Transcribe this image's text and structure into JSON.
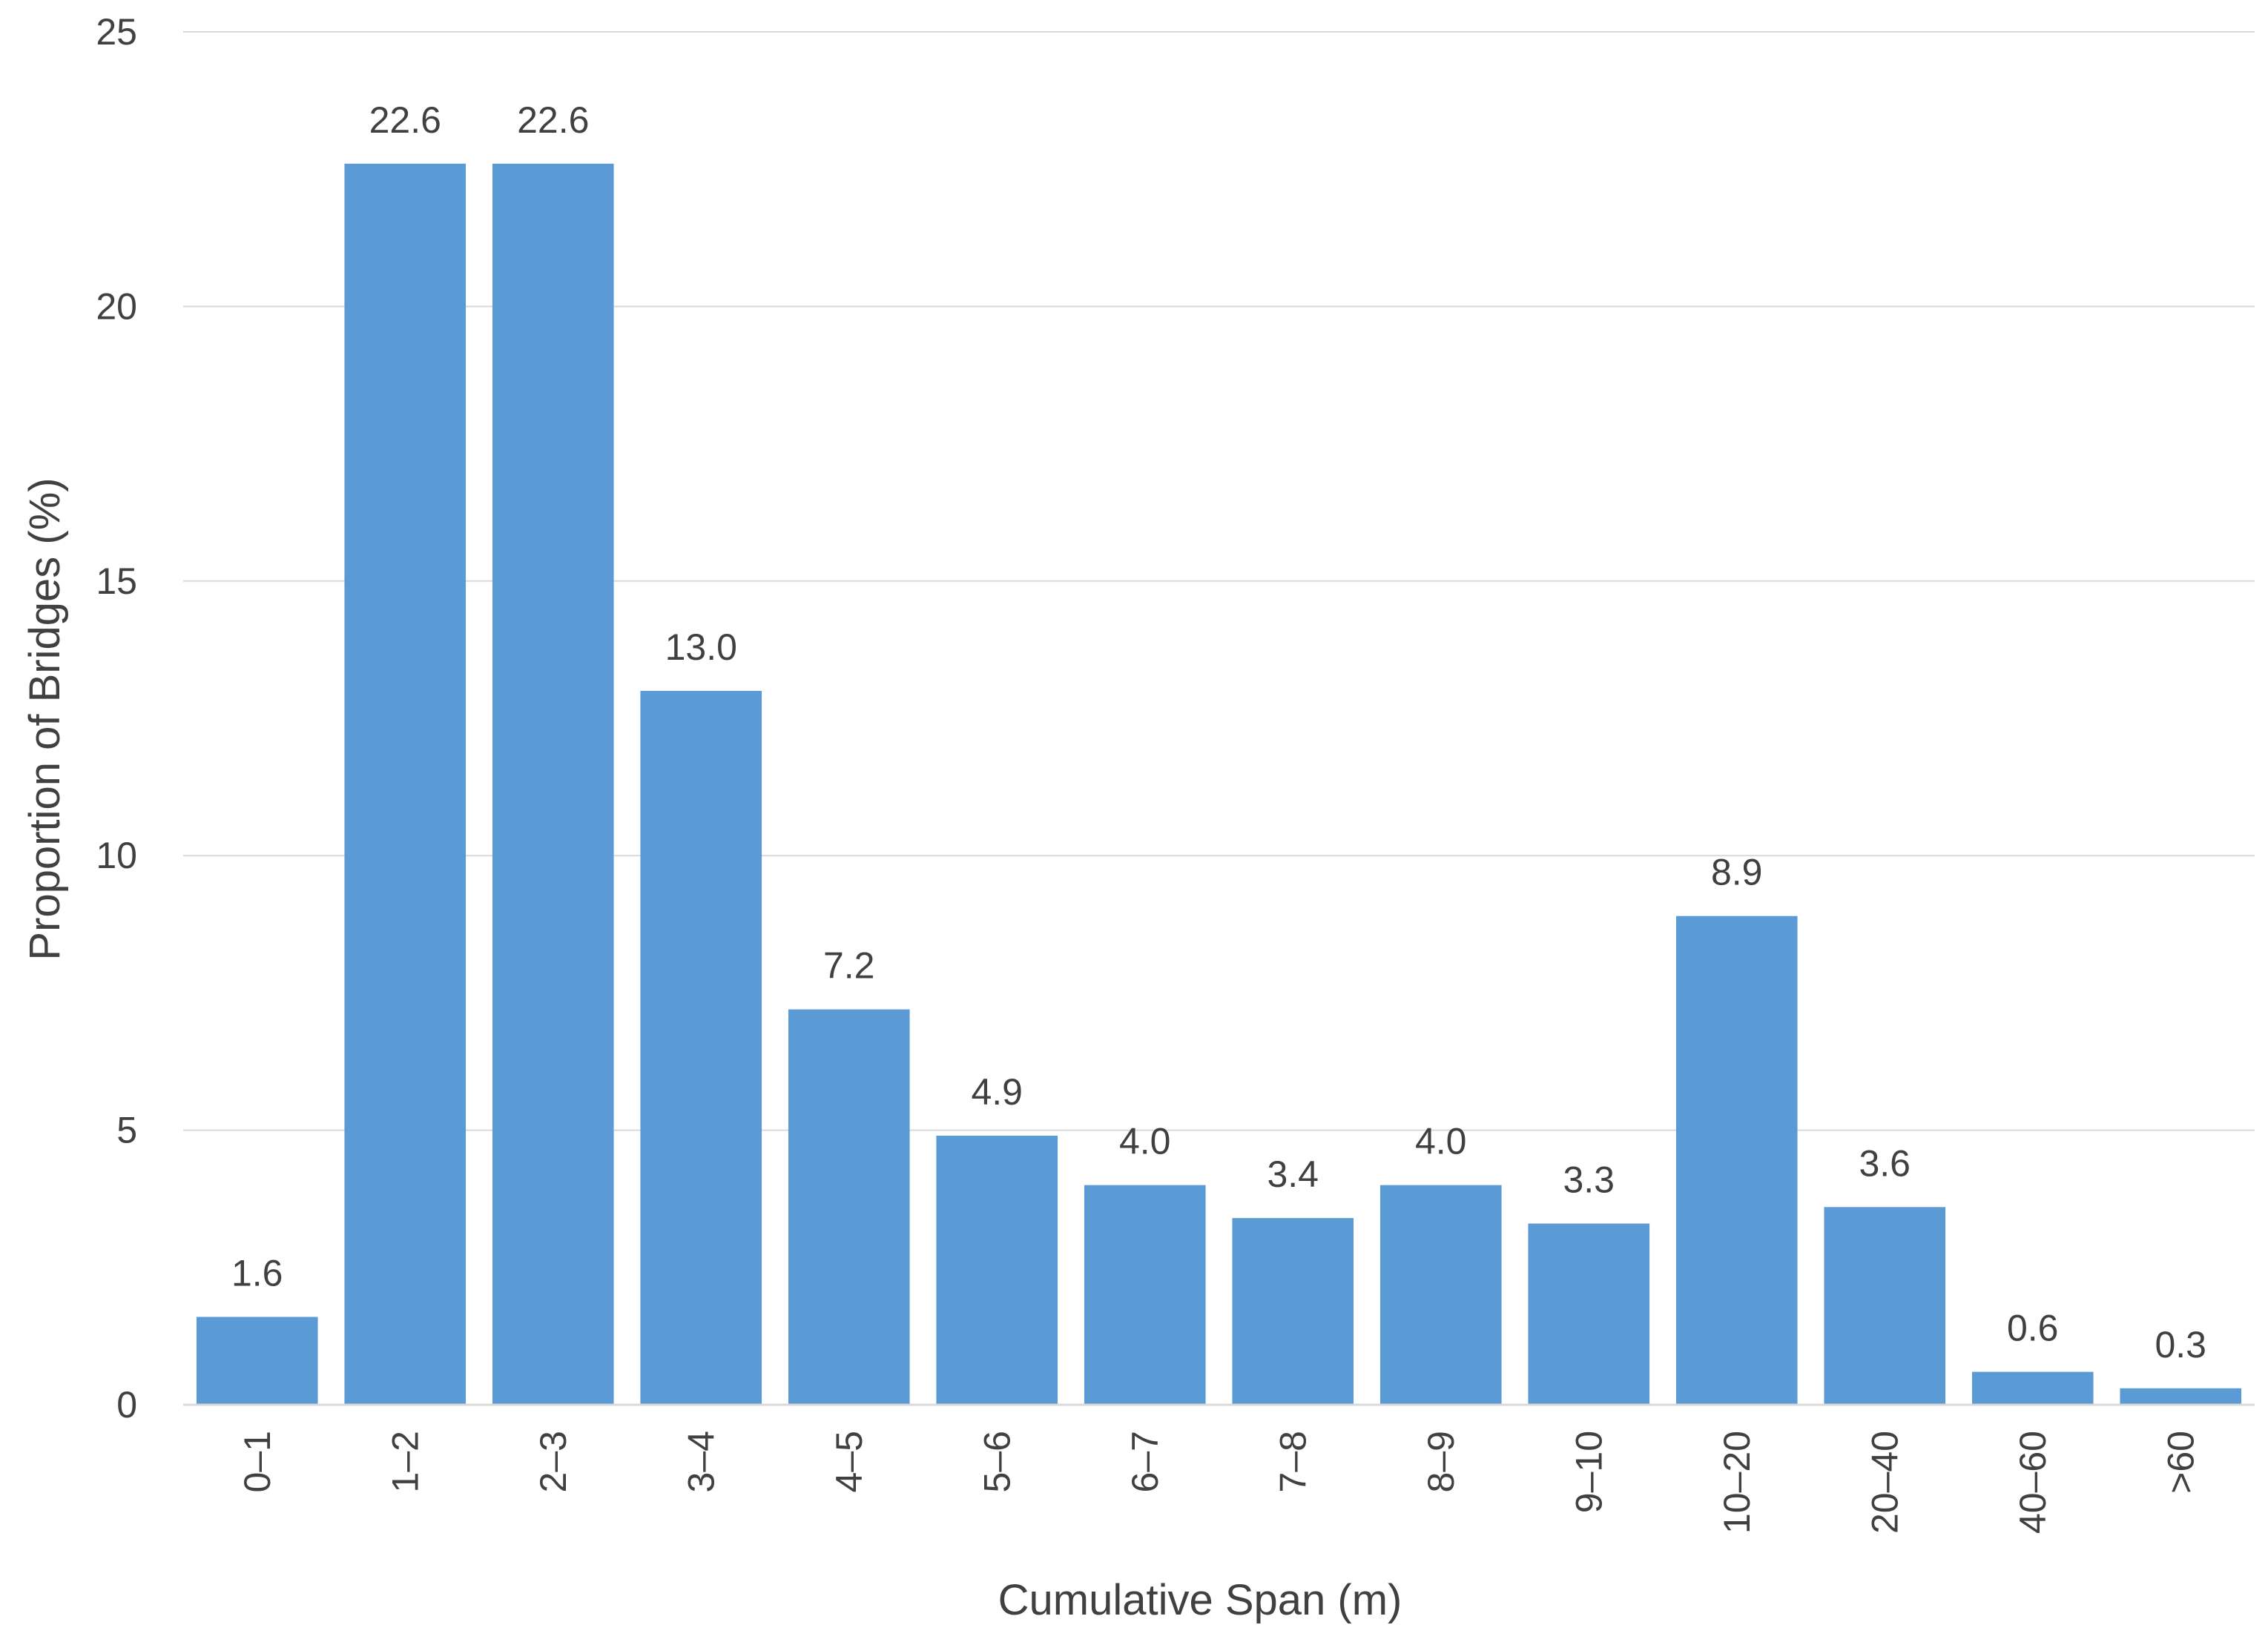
{
  "chart_data": {
    "type": "bar",
    "xlabel": "Cumulative Span (m)",
    "ylabel": "Proportion of Bridges (%)",
    "ylim": [
      0,
      25
    ],
    "yticks": [
      "0",
      "5",
      "10",
      "15",
      "20",
      "25"
    ],
    "grid": true,
    "categories": [
      "0–1",
      "1–2",
      "2–3",
      "3–4",
      "4–5",
      "5–6",
      "6–7",
      "7–8",
      "8–9",
      "9–10",
      "10–20",
      "20–40",
      "40–60",
      ">60"
    ],
    "values": [
      1.6,
      22.6,
      22.6,
      13.0,
      7.2,
      4.9,
      4.0,
      3.4,
      4.0,
      3.3,
      8.9,
      3.6,
      0.6,
      0.3
    ],
    "data_labels": [
      "1.6",
      "22.6",
      "22.6",
      "13.0",
      "7.2",
      "4.9",
      "4.0",
      "3.4",
      "4.0",
      "3.3",
      "8.9",
      "3.6",
      "0.6",
      "0.3"
    ],
    "colors": {
      "bar": "#5b9bd5",
      "grid": "#d9d9d9",
      "text": "#404040"
    }
  }
}
